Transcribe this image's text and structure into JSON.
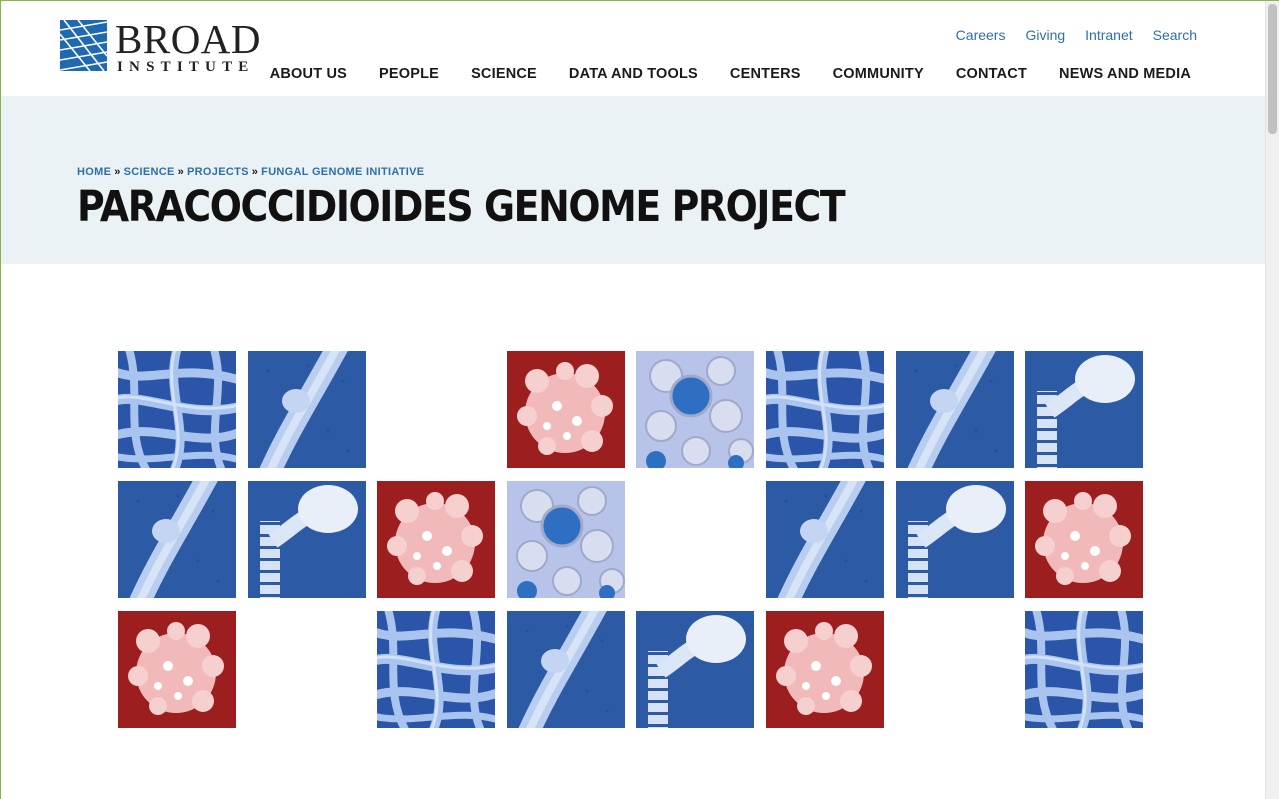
{
  "brand": {
    "logo_title": "BROAD",
    "logo_subtitle": "INSTITUTE",
    "logo_icon": "broad-logo-mark-icon",
    "accent_color": "#2f6fa8",
    "logo_blue": "#1f69b3"
  },
  "utility_nav": [
    {
      "label": "Careers"
    },
    {
      "label": "Giving"
    },
    {
      "label": "Intranet"
    },
    {
      "label": "Search"
    }
  ],
  "main_nav": [
    {
      "label": "ABOUT US"
    },
    {
      "label": "PEOPLE"
    },
    {
      "label": "SCIENCE"
    },
    {
      "label": "DATA AND TOOLS"
    },
    {
      "label": "CENTERS"
    },
    {
      "label": "COMMUNITY"
    },
    {
      "label": "CONTACT"
    },
    {
      "label": "NEWS AND MEDIA"
    }
  ],
  "breadcrumb": [
    {
      "label": "HOME"
    },
    {
      "label": "SCIENCE"
    },
    {
      "label": "PROJECTS"
    },
    {
      "label": "FUNGAL GENOME INITIATIVE"
    }
  ],
  "breadcrumb_separator": "»",
  "page_title": "PARACOCCIDIOIDES GENOME PROJECT",
  "gallery": {
    "rows": [
      [
        "hyphae",
        "hypha-branch",
        "empty",
        "yeast-red",
        "cells-light",
        "hyphae",
        "hypha-branch",
        "conidiophore"
      ],
      [
        "hypha-branch",
        "conidiophore",
        "yeast-red",
        "cells-light",
        "empty",
        "hypha-branch",
        "conidiophore",
        "yeast-red"
      ],
      [
        "yeast-red",
        "empty",
        "hyphae",
        "hypha-branch",
        "conidiophore",
        "yeast-red",
        "empty",
        "hyphae"
      ]
    ]
  }
}
